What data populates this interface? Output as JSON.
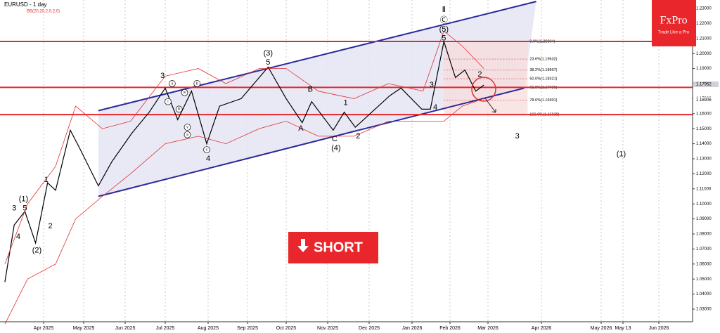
{
  "chart_data": {
    "type": "line",
    "title": "EURUSD - 1 day",
    "indicator": "BB(20,20,2,0,2,0)",
    "brand": "FxPro",
    "tagline": "Trade Like a Pro",
    "button": "SHORT",
    "grid": true,
    "ylim": [
      1.0216,
      1.2356
    ],
    "yticks": [
      {
        "value": 1.03,
        "label": "1.03000"
      },
      {
        "value": 1.04,
        "label": "1.04000"
      },
      {
        "value": 1.05,
        "label": "1.05000"
      },
      {
        "value": 1.06,
        "label": "1.06000"
      },
      {
        "value": 1.07,
        "label": "1.07000"
      },
      {
        "value": 1.08,
        "label": "1.08000"
      },
      {
        "value": 1.09,
        "label": "1.09000"
      },
      {
        "value": 1.1,
        "label": "1.10000"
      },
      {
        "value": 1.11,
        "label": "1.11000"
      },
      {
        "value": 1.12,
        "label": "1.12000"
      },
      {
        "value": 1.13,
        "label": "1.13000"
      },
      {
        "value": 1.14,
        "label": "1.14000"
      },
      {
        "value": 1.15,
        "label": "1.15000"
      },
      {
        "value": 1.16,
        "label": "1.16000"
      },
      {
        "value": 1.17,
        "label": "1.17000"
      },
      {
        "value": 1.18,
        "label": "1.18000"
      },
      {
        "value": 1.19,
        "label": "1.19000"
      },
      {
        "value": 1.2,
        "label": "1.20000"
      },
      {
        "value": 1.21,
        "label": "1.21000"
      },
      {
        "value": 1.22,
        "label": "1.22000"
      },
      {
        "value": 1.23,
        "label": "1.23000"
      }
    ],
    "xticks": [
      {
        "value": "2025-04",
        "label": "Apr 2025"
      },
      {
        "value": "2025-05",
        "label": "May 2025"
      },
      {
        "value": "2025-06",
        "label": "Jun 2025"
      },
      {
        "value": "2025-07",
        "label": "Jul 2025"
      },
      {
        "value": "2025-08",
        "label": "Aug 2025"
      },
      {
        "value": "2025-09",
        "label": "Sep 2025"
      },
      {
        "value": "2025-10",
        "label": "Oct 2025"
      },
      {
        "value": "2025-11",
        "label": "Nov 2025"
      },
      {
        "value": "2025-12",
        "label": "Dec 2025"
      },
      {
        "value": "2026-01",
        "label": "Jan 2026"
      },
      {
        "value": "2026-02",
        "label": "Feb 2026"
      },
      {
        "value": "2026-03",
        "label": "Mar 2026"
      },
      {
        "value": "2026-04",
        "label": "Apr 2026"
      },
      {
        "value": "2026-05",
        "label": "May 2026"
      },
      {
        "value": "2026-05-13",
        "label": "May 13"
      },
      {
        "value": "2026-06",
        "label": "Jun 2026"
      }
    ],
    "series": [
      {
        "color": "#000000",
        "x": [
          "2025-03-03",
          "2025-03-10",
          "2025-03-18",
          "2025-03-26",
          "2025-04-04",
          "2025-04-10",
          "2025-04-21",
          "2025-04-28",
          "2025-05-12",
          "2025-05-22",
          "2025-06-06",
          "2025-06-19",
          "2025-07-01",
          "2025-07-10",
          "2025-07-20",
          "2025-07-31",
          "2025-08-10",
          "2025-08-27",
          "2025-09-17",
          "2025-10-01",
          "2025-10-13",
          "2025-10-20",
          "2025-11-05",
          "2025-11-13",
          "2025-11-21",
          "2025-12-16",
          "2025-12-24",
          "2026-01-09",
          "2026-01-16",
          "2026-01-27",
          "2026-02-05",
          "2026-02-12",
          "2026-02-20",
          "2026-02-26"
        ],
        "values": [
          1.048,
          1.086,
          1.095,
          1.074,
          1.114,
          1.109,
          1.149,
          1.137,
          1.112,
          1.128,
          1.147,
          1.161,
          1.177,
          1.156,
          1.175,
          1.14,
          1.165,
          1.17,
          1.191,
          1.17,
          1.154,
          1.168,
          1.149,
          1.161,
          1.151,
          1.172,
          1.177,
          1.163,
          1.163,
          1.208,
          1.184,
          1.189,
          1.175,
          1.179
        ]
      },
      {
        "color": "#e03030",
        "x": [
          "2025-03-03",
          "2025-03-20",
          "2025-04-10",
          "2025-04-25",
          "2025-05-15",
          "2025-06-05",
          "2025-07-01",
          "2025-07-25",
          "2025-08-15",
          "2025-09-10",
          "2025-10-01",
          "2025-10-25",
          "2025-11-20",
          "2025-12-15",
          "2026-01-10",
          "2026-01-27",
          "2026-02-10",
          "2026-02-26"
        ],
        "values": [
          1.06,
          1.1,
          1.125,
          1.165,
          1.15,
          1.155,
          1.185,
          1.19,
          1.18,
          1.19,
          1.19,
          1.175,
          1.17,
          1.18,
          1.175,
          1.215,
          1.205,
          1.19
        ]
      },
      {
        "color": "#e03030",
        "x": [
          "2025-03-03",
          "2025-03-20",
          "2025-04-10",
          "2025-04-25",
          "2025-05-15",
          "2025-06-05",
          "2025-07-01",
          "2025-07-25",
          "2025-08-15",
          "2025-09-10",
          "2025-10-01",
          "2025-10-25",
          "2025-11-20",
          "2025-12-15",
          "2026-01-10",
          "2026-01-27",
          "2026-02-10",
          "2026-02-26"
        ],
        "values": [
          1.02,
          1.05,
          1.06,
          1.09,
          1.105,
          1.12,
          1.14,
          1.145,
          1.14,
          1.15,
          1.155,
          1.145,
          1.145,
          1.155,
          1.155,
          1.155,
          1.165,
          1.17
        ]
      }
    ],
    "channel": {
      "upper": {
        "x": [
          "2025-05-12",
          "2026-03-29"
        ],
        "values": [
          1.162,
          1.2346
        ]
      },
      "lower": {
        "x": [
          "2025-05-12",
          "2026-03-22"
        ],
        "values": [
          1.105,
          1.177
        ]
      }
    },
    "hlines": [
      1.20804,
      1.1775,
      1.15938
    ],
    "fib_levels": [
      {
        "value": 1.20804,
        "label": "0.0%(1.20804)"
      },
      {
        "value": 1.19632,
        "label": "23.6%(1.19632)"
      },
      {
        "value": 1.18907,
        "label": "38.2%(1.18907)"
      },
      {
        "value": 1.18321,
        "label": "50.0%(1.18321)"
      },
      {
        "value": 1.17736,
        "label": "61.8%(1.17736)"
      },
      {
        "value": 1.16901,
        "label": "78.6%(1.16901)"
      },
      {
        "value": 1.15938,
        "label": "100.0%(1.15938)"
      }
    ],
    "fib_range": [
      "2026-01-27",
      "2026-03-24"
    ],
    "price_labels": [
      {
        "value": 1.17952,
        "label": "1.17952"
      },
      {
        "value": 1.16906,
        "label": "1.16906"
      }
    ],
    "annotations": [
      {
        "x": "2025-03-10",
        "y": 1.097,
        "text": "3"
      },
      {
        "x": "2025-03-17",
        "y": 1.103,
        "text": "(1)"
      },
      {
        "x": "2025-03-18",
        "y": 1.097,
        "text": "5"
      },
      {
        "x": "2025-03-13",
        "y": 1.078,
        "text": "4"
      },
      {
        "x": "2025-03-27",
        "y": 1.069,
        "text": "(2)"
      },
      {
        "x": "2025-04-03",
        "y": 1.116,
        "text": "1"
      },
      {
        "x": "2025-04-06",
        "y": 1.085,
        "text": "2"
      },
      {
        "x": "2025-06-29",
        "y": 1.185,
        "text": "3"
      },
      {
        "x": "2025-08-01",
        "y": 1.13,
        "text": "4"
      },
      {
        "x": "2025-09-17",
        "y": 1.2,
        "text": "(3)"
      },
      {
        "x": "2025-09-17",
        "y": 1.194,
        "text": "5"
      },
      {
        "x": "2025-10-12",
        "y": 1.15,
        "text": "A"
      },
      {
        "x": "2025-10-19",
        "y": 1.176,
        "text": "B"
      },
      {
        "x": "2025-11-06",
        "y": 1.143,
        "text": "C"
      },
      {
        "x": "2025-11-07",
        "y": 1.137,
        "text": "(4)"
      },
      {
        "x": "2025-11-14",
        "y": 1.167,
        "text": "1"
      },
      {
        "x": "2025-11-23",
        "y": 1.145,
        "text": "2"
      },
      {
        "x": "2026-01-17",
        "y": 1.179,
        "text": "3"
      },
      {
        "x": "2026-01-20",
        "y": 1.164,
        "text": "4"
      },
      {
        "x": "2026-01-27",
        "y": 1.21,
        "text": "5"
      },
      {
        "x": "2026-01-27",
        "y": 1.216,
        "text": "(5)"
      },
      {
        "x": "2026-01-27",
        "y": 1.222,
        "text": "Ⓒ"
      },
      {
        "x": "2026-01-27",
        "y": 1.229,
        "text": "Ⅱ"
      },
      {
        "x": "2026-02-23",
        "y": 1.186,
        "text": "2"
      },
      {
        "x": "2026-03-18",
        "y": 1.145,
        "text": "3"
      },
      {
        "x": "2026-05-12",
        "y": 1.133,
        "text": "(1)"
      }
    ],
    "circled_annotations": [
      {
        "x": "2025-07-03",
        "y": 1.168,
        "text": "i"
      },
      {
        "x": "2025-07-06",
        "y": 1.18,
        "text": "ii"
      },
      {
        "x": "2025-07-11",
        "y": 1.163,
        "text": "iii"
      },
      {
        "x": "2025-07-15",
        "y": 1.174,
        "text": "iv"
      },
      {
        "x": "2025-07-17",
        "y": 1.151,
        "text": "v"
      },
      {
        "x": "2025-07-17",
        "y": 1.146,
        "text": "a"
      },
      {
        "x": "2025-07-24",
        "y": 1.18,
        "text": "b"
      },
      {
        "x": "2025-07-31",
        "y": 1.136,
        "text": "c"
      }
    ]
  }
}
